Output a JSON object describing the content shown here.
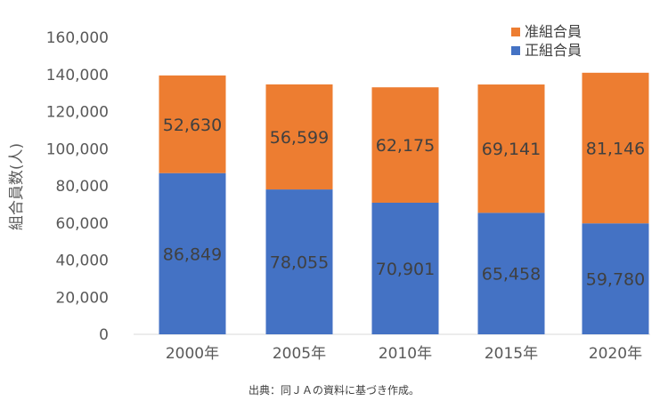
{
  "chart_data": {
    "type": "bar",
    "stacked": true,
    "categories": [
      "2000年",
      "2005年",
      "2010年",
      "2015年",
      "2020年"
    ],
    "series": [
      {
        "name": "正組合員",
        "color": "#4472C4",
        "values": [
          86849,
          78055,
          70901,
          65458,
          59780
        ]
      },
      {
        "name": "准組合員",
        "color": "#ED7D31",
        "values": [
          52630,
          56599,
          62175,
          69141,
          81146
        ]
      }
    ],
    "value_labels": [
      [
        "86,849",
        "78,055",
        "70,901",
        "65,458",
        "59,780"
      ],
      [
        "52,630",
        "56,599",
        "62,175",
        "69,141",
        "81,146"
      ]
    ],
    "yticks": [
      "0",
      "20,000",
      "40,000",
      "60,000",
      "80,000",
      "100,000",
      "120,000",
      "140,000",
      "160,000"
    ],
    "ylim": [
      0,
      160000
    ],
    "ylabel": "組合員数(人)",
    "xlabel": "",
    "title": "",
    "legend_position": "top-right",
    "grid": false
  },
  "source": "出典：同ＪＡの資料に基づき作成。"
}
